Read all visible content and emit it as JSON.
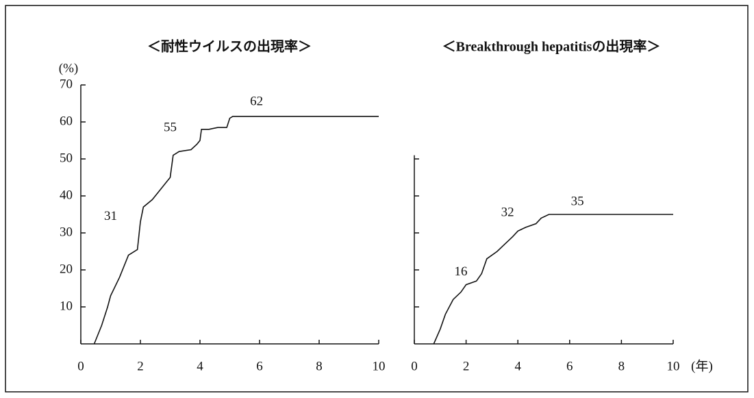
{
  "chart_data": [
    {
      "type": "line",
      "title": "＜耐性ウイルスの出現率＞",
      "ylabel": "(%)",
      "xlim": [
        0,
        10
      ],
      "xticks": [
        0,
        2,
        4,
        6,
        8,
        10
      ],
      "ylim": [
        0,
        70
      ],
      "yticks": [
        10,
        20,
        30,
        40,
        50,
        60,
        70
      ],
      "show_ytick_labels": true,
      "color": "#111111",
      "x": [
        0.45,
        0.7,
        0.9,
        1.0,
        1.3,
        1.6,
        1.9,
        2.0,
        2.1,
        2.4,
        2.6,
        2.9,
        3.0,
        3.1,
        3.3,
        3.7,
        3.9,
        4.0,
        4.05,
        4.3,
        4.6,
        4.9,
        5.0,
        5.1,
        10
      ],
      "values": [
        0,
        5,
        10,
        13,
        18,
        24,
        25.5,
        33,
        37,
        39,
        41,
        44,
        45,
        51,
        52,
        52.5,
        54,
        55,
        58,
        58,
        58.5,
        58.5,
        61,
        61.5,
        61.5
      ],
      "annotations": [
        {
          "x": 1,
          "value": 31
        },
        {
          "x": 3,
          "value": 55
        },
        {
          "x": 5.9,
          "value": 62
        }
      ]
    },
    {
      "type": "line",
      "title": "＜Breakthrough hepatitisの出現率＞",
      "xlabel": "(年)",
      "xlim": [
        0,
        10
      ],
      "xticks": [
        0,
        2,
        4,
        6,
        8,
        10
      ],
      "ylim": [
        0,
        51
      ],
      "yticks": [
        10,
        20,
        30,
        40,
        50
      ],
      "show_ytick_labels": false,
      "color": "#111111",
      "x": [
        0.75,
        1.0,
        1.2,
        1.5,
        1.8,
        2.0,
        2.4,
        2.6,
        2.8,
        3.2,
        3.5,
        3.8,
        4.0,
        4.3,
        4.7,
        4.9,
        5.2,
        10
      ],
      "values": [
        0,
        4,
        8,
        12,
        14,
        16,
        17,
        19,
        23,
        25,
        27,
        29,
        30.5,
        31.5,
        32.5,
        34,
        35,
        35
      ],
      "annotations": [
        {
          "x": 1.8,
          "value": 16
        },
        {
          "x": 3.6,
          "value": 32
        },
        {
          "x": 6.3,
          "value": 35
        }
      ]
    }
  ]
}
